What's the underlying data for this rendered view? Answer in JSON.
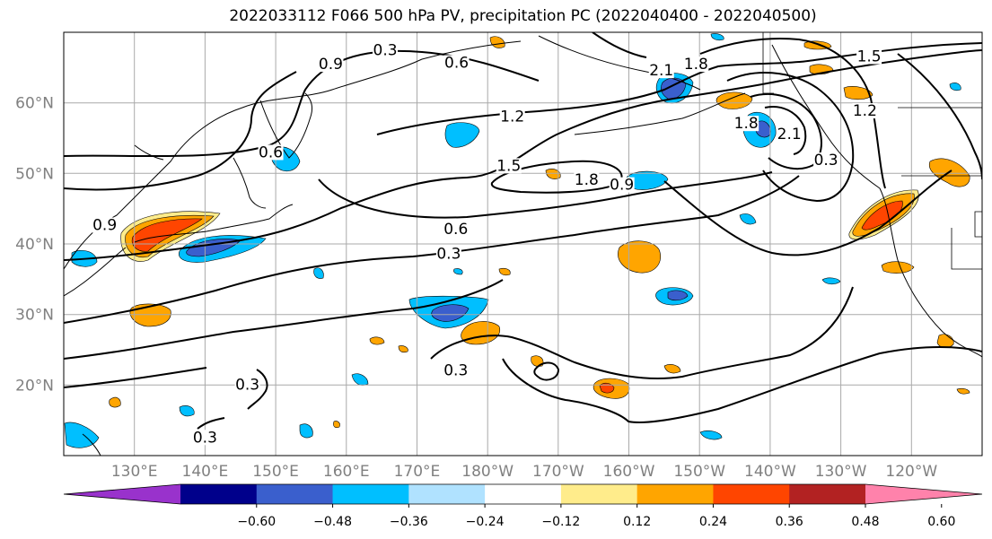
{
  "title": "2022033112 F066 500 hPa PV, precipitation PC (2022040400 - 2022040500)",
  "map": {
    "lon_range": [
      120,
      250
    ],
    "lat_range": [
      10,
      70
    ],
    "lat_ticks": [
      {
        "value": 60,
        "label": "60°N"
      },
      {
        "value": 50,
        "label": "50°N"
      },
      {
        "value": 40,
        "label": "40°N"
      },
      {
        "value": 30,
        "label": "30°N"
      },
      {
        "value": 20,
        "label": "20°N"
      }
    ],
    "lon_ticks": [
      {
        "value": 130,
        "label": "130°E"
      },
      {
        "value": 140,
        "label": "140°E"
      },
      {
        "value": 150,
        "label": "150°E"
      },
      {
        "value": 160,
        "label": "160°E"
      },
      {
        "value": 170,
        "label": "170°E"
      },
      {
        "value": 180,
        "label": "180°W"
      },
      {
        "value": 190,
        "label": "170°W"
      },
      {
        "value": 200,
        "label": "160°W"
      },
      {
        "value": 210,
        "label": "150°W"
      },
      {
        "value": 220,
        "label": "140°W"
      },
      {
        "value": 230,
        "label": "130°W"
      },
      {
        "value": 240,
        "label": "120°W"
      }
    ],
    "gridlines": true,
    "pv_contour_labels": [
      {
        "text": "0.3",
        "lon": 165.5,
        "lat": 66.9
      },
      {
        "text": "0.9",
        "lon": 157.8,
        "lat": 64.9
      },
      {
        "text": "0.6",
        "lon": 175.6,
        "lat": 65.1
      },
      {
        "text": "2.1",
        "lon": 204.6,
        "lat": 64.0
      },
      {
        "text": "1.8",
        "lon": 209.5,
        "lat": 64.9
      },
      {
        "text": "1.5",
        "lon": 234.0,
        "lat": 66.0
      },
      {
        "text": "1.2",
        "lon": 233.4,
        "lat": 58.3
      },
      {
        "text": "1.2",
        "lon": 183.5,
        "lat": 57.5
      },
      {
        "text": "1.5",
        "lon": 183.0,
        "lat": 50.5
      },
      {
        "text": "1.8",
        "lon": 194.0,
        "lat": 48.5
      },
      {
        "text": "0.9",
        "lon": 199.0,
        "lat": 47.8
      },
      {
        "text": "2.1",
        "lon": 222.7,
        "lat": 55.0
      },
      {
        "text": "1.8",
        "lon": 216.6,
        "lat": 56.5
      },
      {
        "text": "0.3",
        "lon": 227.9,
        "lat": 51.3
      },
      {
        "text": "0.6",
        "lon": 149.3,
        "lat": 52.4
      },
      {
        "text": "0.6",
        "lon": 175.5,
        "lat": 41.5
      },
      {
        "text": "0.3",
        "lon": 174.5,
        "lat": 38.0
      },
      {
        "text": "0.9",
        "lon": 125.8,
        "lat": 42.1
      },
      {
        "text": "0.3",
        "lon": 175.5,
        "lat": 21.5
      },
      {
        "text": "0.3",
        "lon": 146.0,
        "lat": 19.5
      },
      {
        "text": "0.3",
        "lon": 140.0,
        "lat": 12.0
      }
    ]
  },
  "colorbar": {
    "colors": [
      "#9932cc",
      "#00008b",
      "#3a5fcd",
      "#00bfff",
      "#b0e2ff",
      "#ffffff",
      "#ffec8b",
      "#ffa500",
      "#ff4500",
      "#b22222",
      "#ff82ab"
    ],
    "levels": [
      "−0.60",
      "−0.48",
      "−0.36",
      "−0.24",
      "−0.12",
      "0.12",
      "0.24",
      "0.36",
      "0.48",
      "0.60"
    ]
  }
}
